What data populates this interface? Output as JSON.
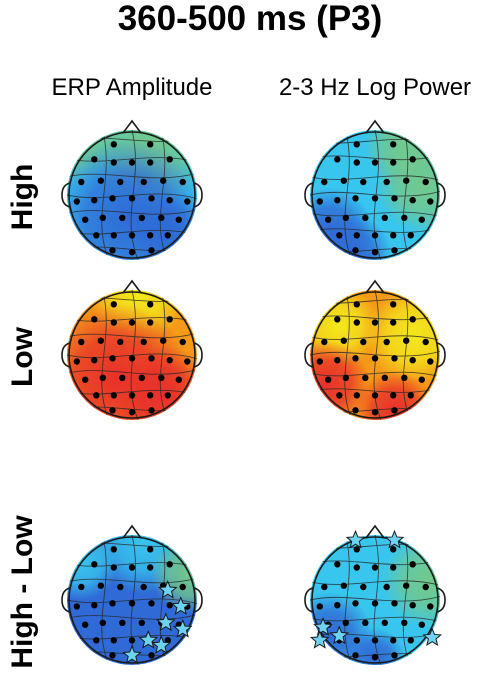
{
  "title": "360-500 ms (P3)",
  "columns": [
    "ERP Amplitude",
    "2-3 Hz Log Power"
  ],
  "rows": [
    "High",
    "Low",
    "High - Low"
  ],
  "colormap": {
    "blue": "#2f6ad6",
    "light_blue": "#38c6ee",
    "green": "#73c98b",
    "yellow": "#f3e81c",
    "orange": "#f59a18",
    "red": "#e8302a"
  },
  "star_color": "#6ed2f2",
  "electrode_color": "#000000",
  "markers": "significant-electrode-star"
}
